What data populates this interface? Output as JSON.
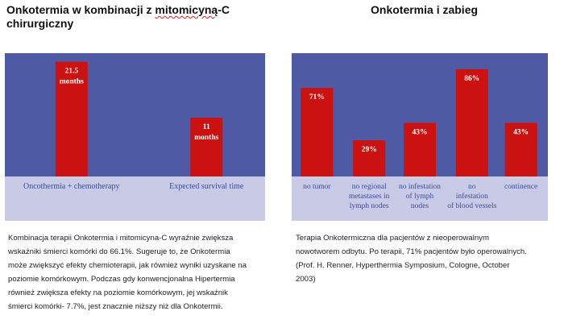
{
  "left": {
    "heading_pre": "Onkotermia w kombinacji z ",
    "heading_mid": "mitomicyną",
    "heading_post": "-C chirurgiczny",
    "caption_lines": [
      "Kombinacja terapii Onkotermia i mitomicyna-C wyraźnie zwiększa",
      "wskaźniki śmierci komórki do 66.1%. Sugeruje to, że Onkotermia",
      "może zwiększyć efekty chemioterapii, jak również wyniki uzyskane na",
      "poziomie komórkowym. Podczas gdy konwencjonalna Hipertermia",
      "również zwiększa efekty na poziomie komórkowym, jej wskaźnik",
      "śmierci komórki- 7.7%, jest znacznie niższy niż dla Onkotermii."
    ]
  },
  "right": {
    "heading": "Onkotermia i zabieg",
    "caption_lines": [
      "Terapia Onkotermiczna dla pacjentów z nieoperowalnym",
      "nowotworem odbytu. Po terapii, 71% pacjentów było operowalnych.",
      "(Prof. H. Renner,  Hyperthermia Symposium, Cologne, October",
      "2003)"
    ]
  },
  "chart_data": [
    {
      "type": "bar",
      "categories": [
        "Oncothermia + chemotherapy",
        "Expected survival time"
      ],
      "values": [
        21.5,
        11
      ],
      "data_labels": [
        [
          "21.5",
          "months"
        ],
        [
          "11",
          "months"
        ]
      ],
      "ylim": [
        0,
        22.5
      ],
      "colors": {
        "plot_bg": "#4f5aa4",
        "axis_band": "#c9cbe6",
        "bar": "#cc1111",
        "label_text": "#ffffff",
        "category_text": "#3a4aa0"
      }
    },
    {
      "type": "bar",
      "categories": [
        [
          "no tumor"
        ],
        [
          "no regional",
          "metastases in",
          "lymph nodes"
        ],
        [
          "no infestation",
          "of lymph",
          "nodes"
        ],
        [
          "no",
          "infestation",
          "of blood vessels"
        ],
        [
          "continence"
        ]
      ],
      "values": [
        71,
        29,
        43,
        86,
        43
      ],
      "data_labels": [
        "71%",
        "29%",
        "43%",
        "86%",
        "43%"
      ],
      "ylim": [
        0,
        95
      ],
      "colors": {
        "plot_bg": "#4f5aa4",
        "axis_band": "#c9cbe6",
        "bar": "#cc1111",
        "label_text": "#ffffff",
        "category_text": "#3a4aa0"
      }
    }
  ]
}
